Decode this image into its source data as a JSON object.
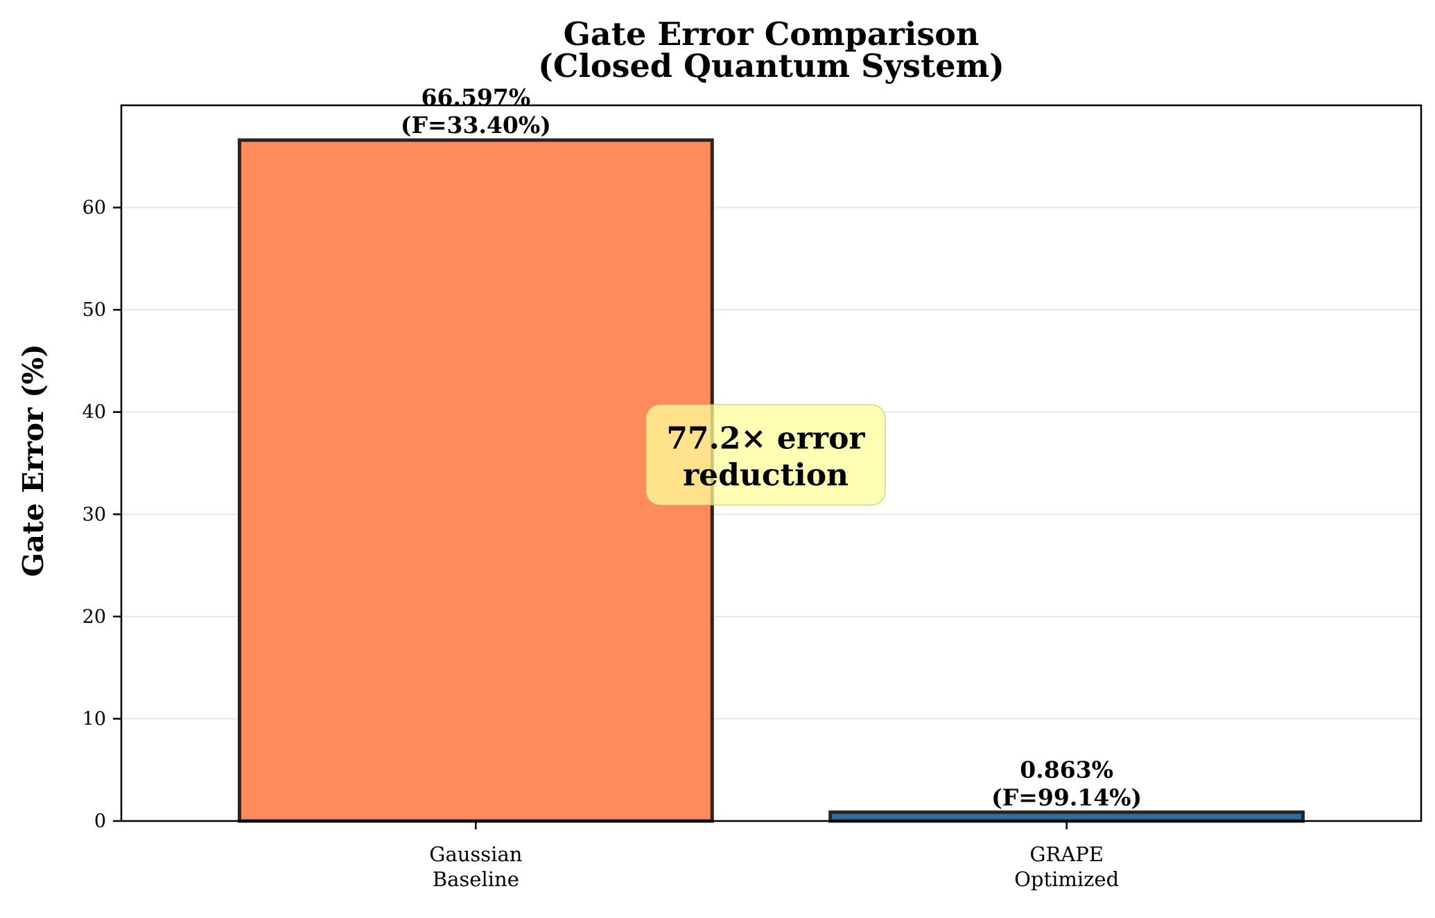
{
  "chart_data": {
    "type": "bar",
    "title": [
      "Gate Error Comparison",
      "(Closed Quantum System)"
    ],
    "xlabel": "",
    "ylabel": "Gate Error (%)",
    "ylim": [
      0,
      70
    ],
    "yticks": [
      0,
      10,
      20,
      30,
      40,
      50,
      60
    ],
    "grid": "y",
    "categories": [
      [
        "Gaussian",
        "Baseline"
      ],
      [
        "GRAPE",
        "Optimized"
      ]
    ],
    "values": [
      66.597,
      0.863
    ],
    "bar_labels": [
      [
        "66.597%",
        "(F=33.40%)"
      ],
      [
        "0.863%",
        "(F=99.14%)"
      ]
    ],
    "colors": [
      "#ff8a5c",
      "#2b6ea6"
    ],
    "annotation": {
      "text": [
        "77.2× error",
        "reduction"
      ],
      "box_color": "#ffff99",
      "y_value": 35
    }
  }
}
